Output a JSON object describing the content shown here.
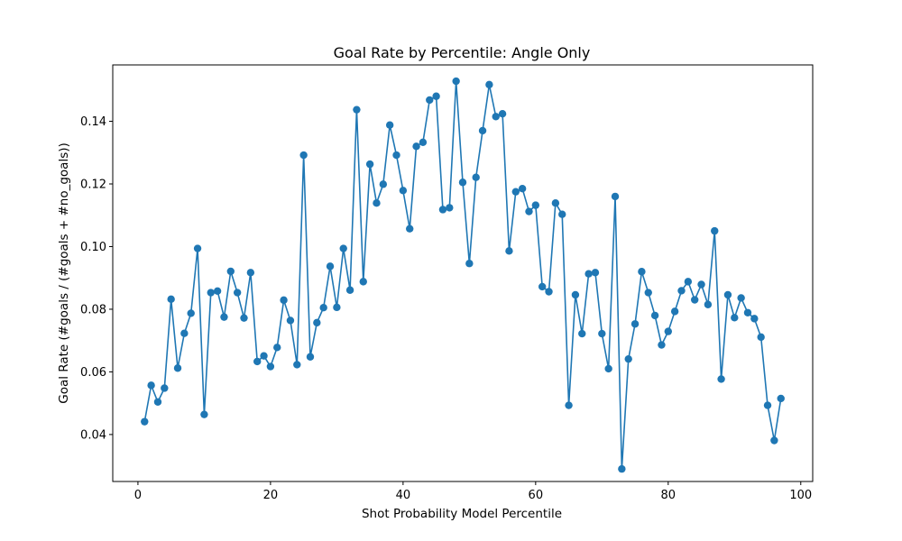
{
  "chart_data": {
    "type": "line",
    "title": "Goal Rate by Percentile: Angle Only",
    "xlabel": "Shot Probability Model Percentile",
    "ylabel": "Goal Rate (#goals / (#goals + #no_goals))",
    "xlim": [
      -3.8,
      101.8
    ],
    "ylim": [
      0.025,
      0.158
    ],
    "xticks": [
      0,
      20,
      40,
      60,
      80,
      100
    ],
    "xtick_labels": [
      "0",
      "20",
      "40",
      "60",
      "80",
      "100"
    ],
    "yticks": [
      0.04,
      0.06,
      0.08,
      0.1,
      0.12,
      0.14
    ],
    "ytick_labels": [
      "0.04",
      "0.06",
      "0.08",
      "0.10",
      "0.12",
      "0.14"
    ],
    "grid": false,
    "markers": true,
    "colors": {
      "series": "#1f77b4"
    },
    "series": [
      {
        "x": [
          1,
          2,
          3,
          4,
          5,
          6,
          7,
          8,
          9,
          10,
          11,
          12,
          13,
          14,
          15,
          16,
          17,
          18,
          19,
          20,
          21,
          22,
          23,
          24,
          25,
          26,
          27,
          28,
          29,
          30,
          31,
          32,
          33,
          34,
          35,
          36,
          37,
          38,
          39,
          40,
          41,
          42,
          43,
          44,
          45,
          46,
          47,
          48,
          49,
          50,
          51,
          52,
          53,
          54,
          55,
          56,
          57,
          58,
          59,
          60,
          61,
          62,
          63,
          64,
          65,
          66,
          67,
          68,
          69,
          70,
          71,
          72,
          73,
          74,
          75,
          76,
          77,
          78,
          79,
          80,
          81,
          82,
          83,
          84,
          85,
          86,
          87,
          88,
          89,
          90,
          91,
          92,
          93,
          94,
          95,
          96,
          97
        ],
        "y": [
          0.0441,
          0.0557,
          0.0504,
          0.0548,
          0.0832,
          0.0612,
          0.0723,
          0.0787,
          0.0994,
          0.0464,
          0.0853,
          0.0858,
          0.0775,
          0.0921,
          0.0853,
          0.0772,
          0.0917,
          0.0633,
          0.0651,
          0.0617,
          0.0678,
          0.0829,
          0.0764,
          0.0623,
          0.1292,
          0.0648,
          0.0757,
          0.0805,
          0.0937,
          0.0806,
          0.0994,
          0.0861,
          0.1437,
          0.0888,
          0.1263,
          0.1139,
          0.1199,
          0.1388,
          0.1292,
          0.1179,
          0.1057,
          0.132,
          0.1333,
          0.1468,
          0.148,
          0.1118,
          0.1124,
          0.1528,
          0.1205,
          0.0946,
          0.1221,
          0.137,
          0.1517,
          0.1415,
          0.1424,
          0.0986,
          0.1175,
          0.1185,
          0.1112,
          0.1132,
          0.0872,
          0.0856,
          0.1139,
          0.1103,
          0.0493,
          0.0846,
          0.0722,
          0.0913,
          0.0917,
          0.0722,
          0.061,
          0.116,
          0.029,
          0.0641,
          0.0753,
          0.092,
          0.0853,
          0.078,
          0.0686,
          0.0729,
          0.0793,
          0.0859,
          0.0888,
          0.083,
          0.0879,
          0.0815,
          0.105,
          0.0577,
          0.0846,
          0.0773,
          0.0836,
          0.0789,
          0.077,
          0.0711,
          0.0493,
          0.0381,
          0.0515
        ]
      }
    ]
  }
}
